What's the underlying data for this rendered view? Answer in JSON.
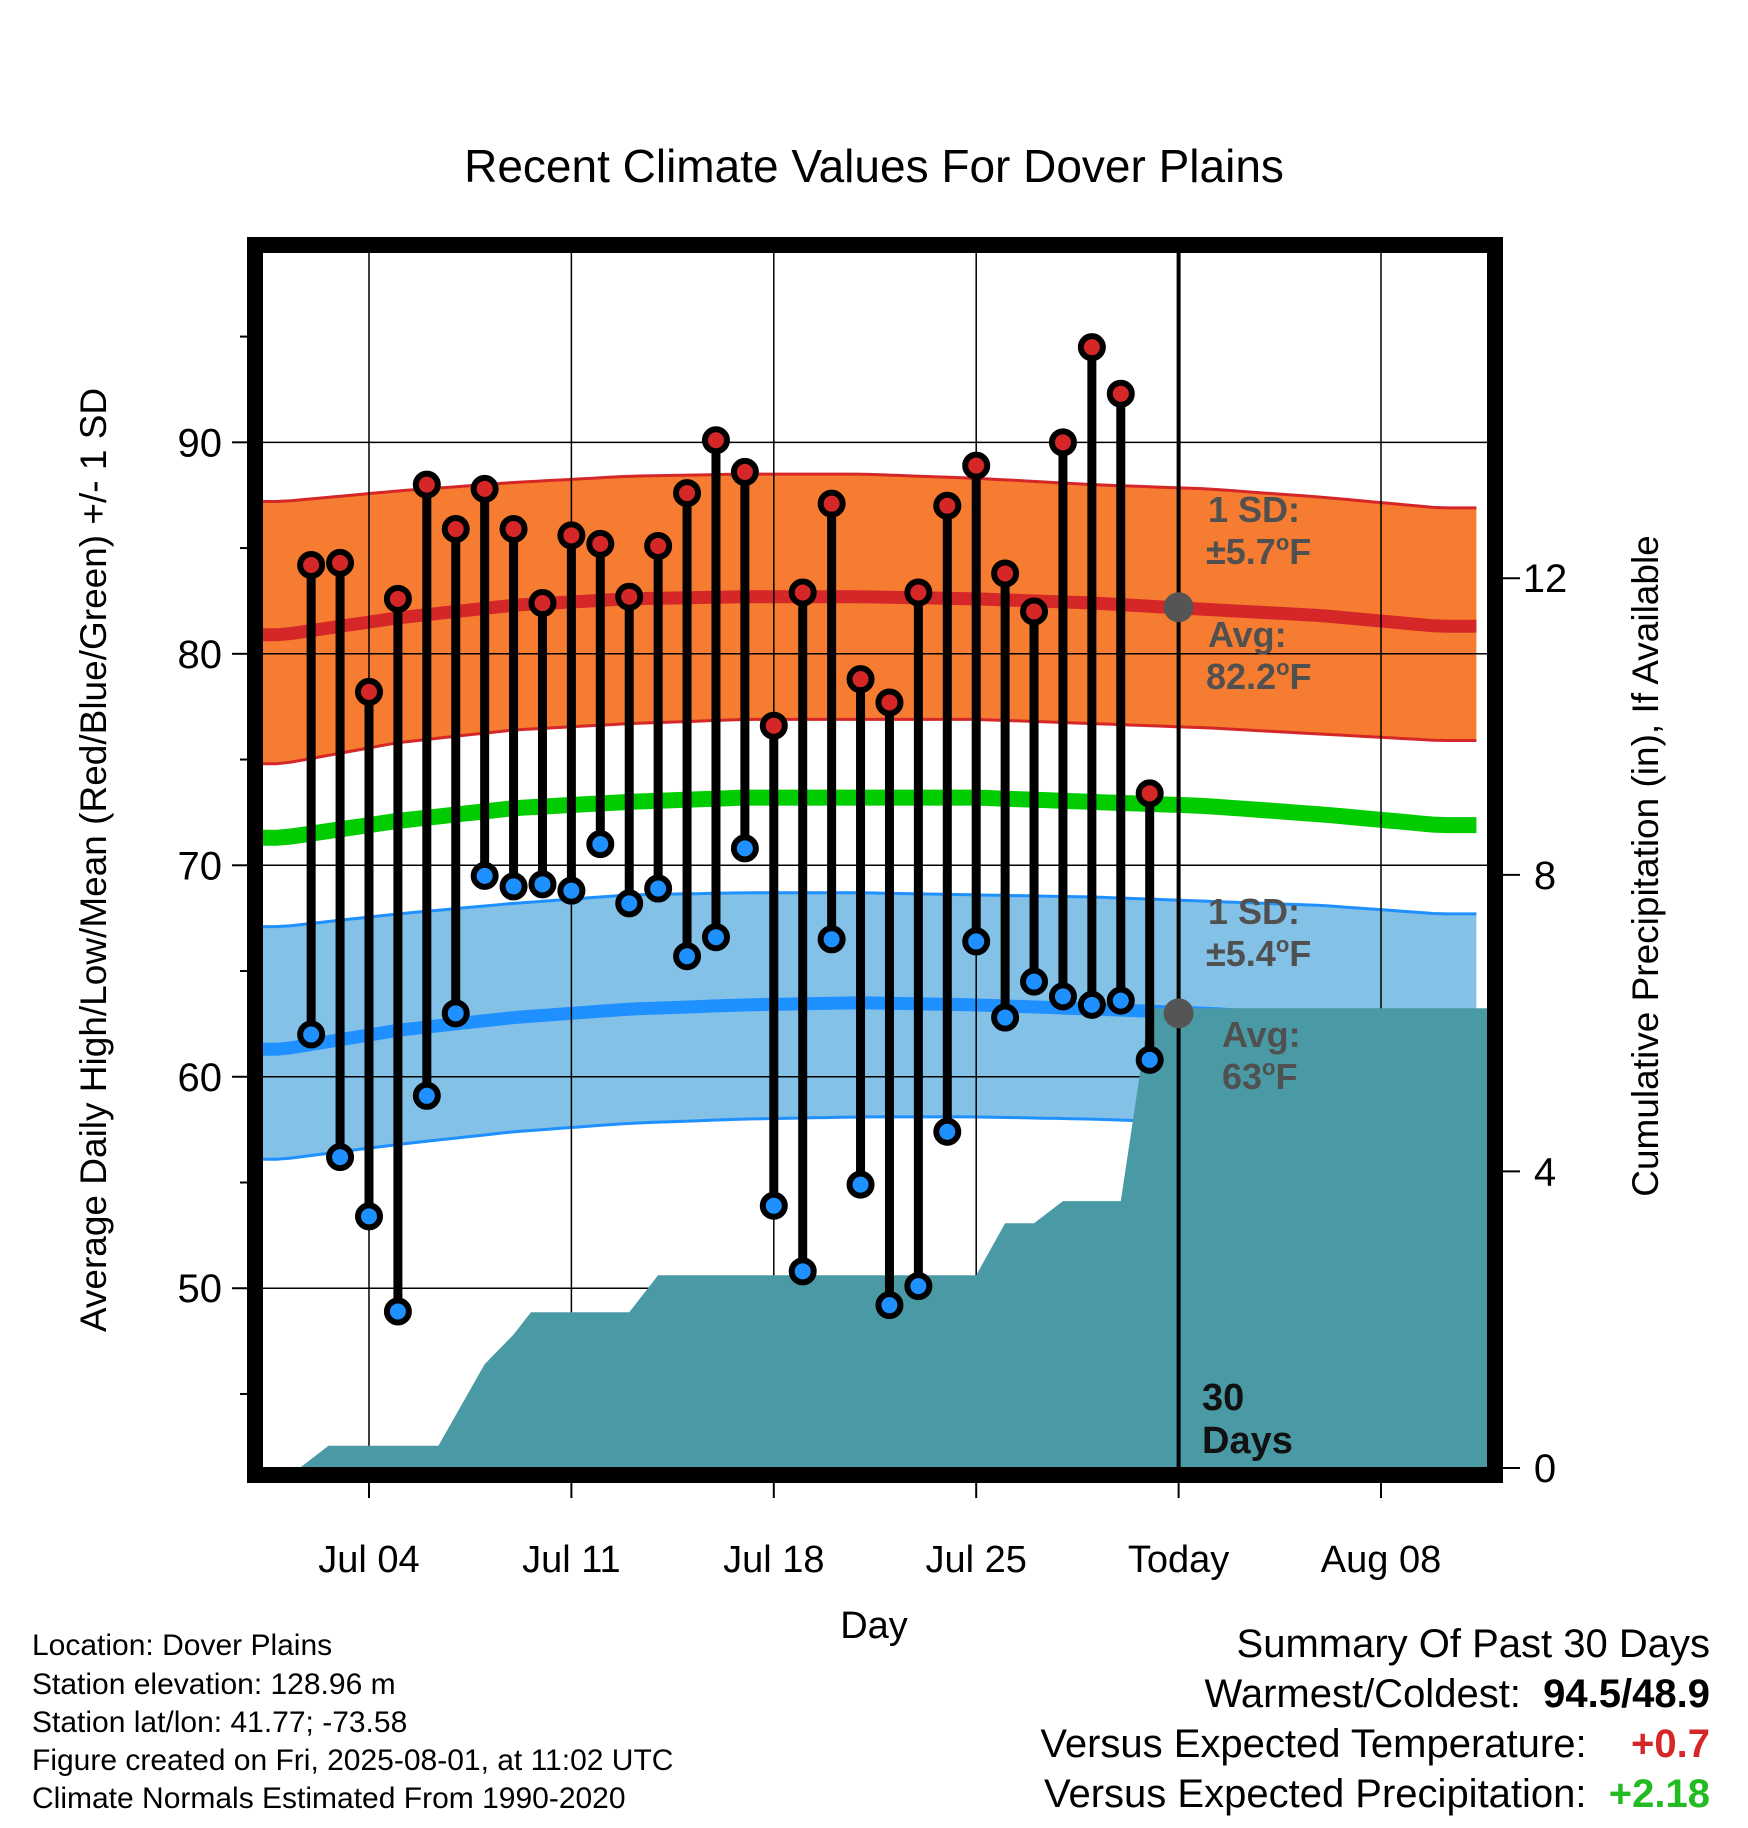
{
  "chart_data": {
    "type": "line",
    "title": "Recent Climate Values For Dover Plains",
    "xlabel": "Day",
    "ylabel_left": "Average Daily High/Low/Mean (Red/Blue/Green) +/- 1 SD",
    "ylabel_right": "Cumulative Precipitation (in), If Available",
    "x_day_range": [
      -0.7,
      41.7
    ],
    "x_ticks": [
      {
        "day": 3,
        "label": "Jul 04"
      },
      {
        "day": 10,
        "label": "Jul 11"
      },
      {
        "day": 17,
        "label": "Jul 18"
      },
      {
        "day": 24,
        "label": "Jul 25"
      },
      {
        "day": 31,
        "label": "Today"
      },
      {
        "day": 38,
        "label": "Aug 08"
      }
    ],
    "today_day": 31,
    "y_left_range": [
      41.5,
      99
    ],
    "y_left_ticks": [
      50,
      60,
      70,
      80,
      90
    ],
    "y_right_range": [
      0,
      16.4
    ],
    "y_right_ticks": [
      0,
      4,
      8,
      12
    ],
    "daily_days": [
      1,
      2,
      3,
      4,
      5,
      6,
      7,
      8,
      9,
      10,
      11,
      12,
      13,
      14,
      15,
      16,
      17,
      18,
      19,
      20,
      21,
      22,
      23,
      24,
      25,
      26,
      27,
      28,
      29,
      30
    ],
    "daily_highs": [
      84.2,
      84.3,
      78.2,
      82.6,
      88.0,
      85.9,
      87.8,
      85.9,
      82.4,
      85.6,
      85.2,
      82.7,
      85.1,
      87.6,
      90.1,
      88.6,
      76.6,
      82.9,
      87.1,
      78.8,
      77.7,
      82.9,
      87.0,
      88.9,
      83.8,
      82.0,
      90.0,
      94.5,
      92.3,
      73.4
    ],
    "daily_lows": [
      62.0,
      56.2,
      53.4,
      48.9,
      59.1,
      63.0,
      69.5,
      69.0,
      69.1,
      68.8,
      71.0,
      68.2,
      68.9,
      65.7,
      66.6,
      70.8,
      53.9,
      50.8,
      66.5,
      54.9,
      49.2,
      50.1,
      57.4,
      66.4,
      62.8,
      64.5,
      63.8,
      63.4,
      63.6,
      60.8
    ],
    "normal_days": [
      0,
      4,
      8,
      12,
      16,
      20,
      24,
      28,
      32,
      36,
      40
    ],
    "normal_high_mean": [
      80.9,
      81.7,
      82.3,
      82.6,
      82.7,
      82.7,
      82.6,
      82.4,
      82.1,
      81.8,
      81.3
    ],
    "normal_high_upper": [
      87.2,
      87.7,
      88.1,
      88.4,
      88.5,
      88.5,
      88.3,
      88.0,
      87.8,
      87.4,
      86.9
    ],
    "normal_high_lower": [
      74.8,
      75.8,
      76.4,
      76.7,
      76.9,
      76.9,
      76.9,
      76.7,
      76.5,
      76.2,
      75.9
    ],
    "normal_mean": [
      71.3,
      72.1,
      72.7,
      73.0,
      73.2,
      73.2,
      73.2,
      73.0,
      72.8,
      72.4,
      71.9
    ],
    "normal_low_mean": [
      61.3,
      62.2,
      62.8,
      63.2,
      63.4,
      63.5,
      63.4,
      63.2,
      63.0,
      62.7,
      62.3
    ],
    "normal_low_upper": [
      67.1,
      67.7,
      68.2,
      68.6,
      68.7,
      68.7,
      68.6,
      68.5,
      68.3,
      68.1,
      67.7
    ],
    "normal_low_lower": [
      56.1,
      56.8,
      57.4,
      57.8,
      58.0,
      58.1,
      58.1,
      58.0,
      57.8,
      57.5,
      57.0
    ],
    "precip_cumulative_points": [
      {
        "day": 0.6,
        "in": 0.0
      },
      {
        "day": 1.6,
        "in": 0.3
      },
      {
        "day": 5.0,
        "in": 0.3
      },
      {
        "day": 5.4,
        "in": 0.3
      },
      {
        "day": 7.0,
        "in": 1.4
      },
      {
        "day": 8.0,
        "in": 1.8
      },
      {
        "day": 8.6,
        "in": 2.1
      },
      {
        "day": 12.0,
        "in": 2.1
      },
      {
        "day": 13.0,
        "in": 2.6
      },
      {
        "day": 24.0,
        "in": 2.6
      },
      {
        "day": 25.0,
        "in": 3.3
      },
      {
        "day": 26.0,
        "in": 3.3
      },
      {
        "day": 27.0,
        "in": 3.6
      },
      {
        "day": 29.0,
        "in": 3.6
      },
      {
        "day": 30.0,
        "in": 6.2
      },
      {
        "day": 31.0,
        "in": 6.2
      },
      {
        "day": 41.7,
        "in": 6.2
      }
    ],
    "annotations": {
      "high_sd_label": "1 SD:",
      "high_sd_value": "±5.7",
      "high_avg_label": "Avg:",
      "high_avg_value": "82.2",
      "high_avg_marker": 82.2,
      "low_sd_label": "1 SD:",
      "low_sd_value": "±5.4",
      "low_avg_label": "Avg:",
      "low_avg_value": "63",
      "low_avg_marker": 63.0,
      "degree_symbol": "o",
      "unit": "F",
      "days_count": "30",
      "days_word": "Days"
    },
    "colors": {
      "high_band": "#f57c30",
      "high_band_edge": "#d62728",
      "high_mean": "#d62728",
      "mean_line": "#00cc00",
      "low_band": "#84c1e6",
      "low_band_edge": "#1e90ff",
      "low_mean": "#1e90ff",
      "high_marker": "#d62728",
      "low_marker": "#1e90ff",
      "precip": "#4a9aa5",
      "avg_marker": "#555555",
      "annotation_text": "#505050"
    }
  },
  "info": {
    "location": "Location: Dover Plains",
    "elevation": "Station elevation: 128.96 m",
    "latlon": "Station lat/lon: 41.77; -73.58",
    "created": "Figure created on Fri, 2025-08-01, at 11:02 UTC",
    "normals": "Climate Normals Estimated From 1990-2020"
  },
  "summary": {
    "title": "Summary Of Past 30 Days",
    "warmest_label": "Warmest/Coldest:",
    "warmest_value": "94.5",
    "slash": "/",
    "coldest_value": "48.9",
    "temp_label": "Versus Expected Temperature:",
    "temp_value": "+0.7",
    "temp_color": "#d62728",
    "precip_label": "Versus Expected Precipitation:",
    "precip_value": "+2.18",
    "precip_color": "#22bb22"
  }
}
